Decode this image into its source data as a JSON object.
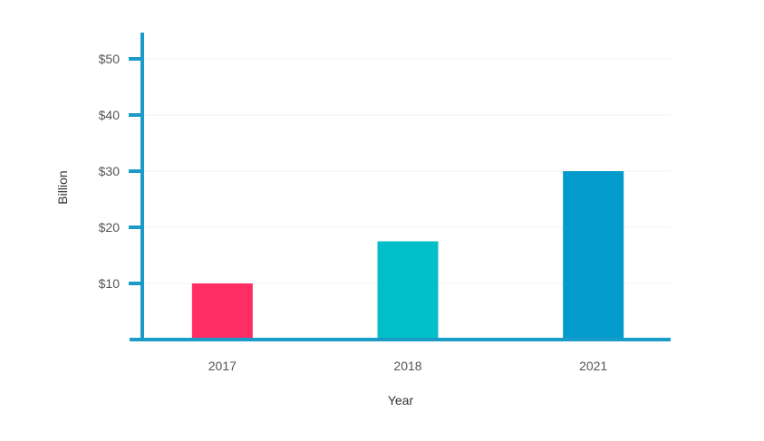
{
  "chart_data": {
    "type": "bar",
    "categories": [
      "2017",
      "2018",
      "2021"
    ],
    "values": [
      10,
      17.5,
      30
    ],
    "bar_colors": [
      "#ff2d63",
      "#00bfc8",
      "#039ccc"
    ],
    "title": "",
    "xlabel": "Year",
    "ylabel": "Billion",
    "ylim": [
      0,
      50
    ],
    "yticks": [
      10,
      20,
      30,
      40,
      50
    ],
    "ytick_labels": [
      "$10",
      "$20",
      "$30",
      "$40",
      "$50"
    ],
    "grid": true,
    "legend": "none"
  },
  "colors": {
    "axis": "#1a9bc9",
    "grid": "#f0f0f0",
    "tick_text": "#555555"
  }
}
